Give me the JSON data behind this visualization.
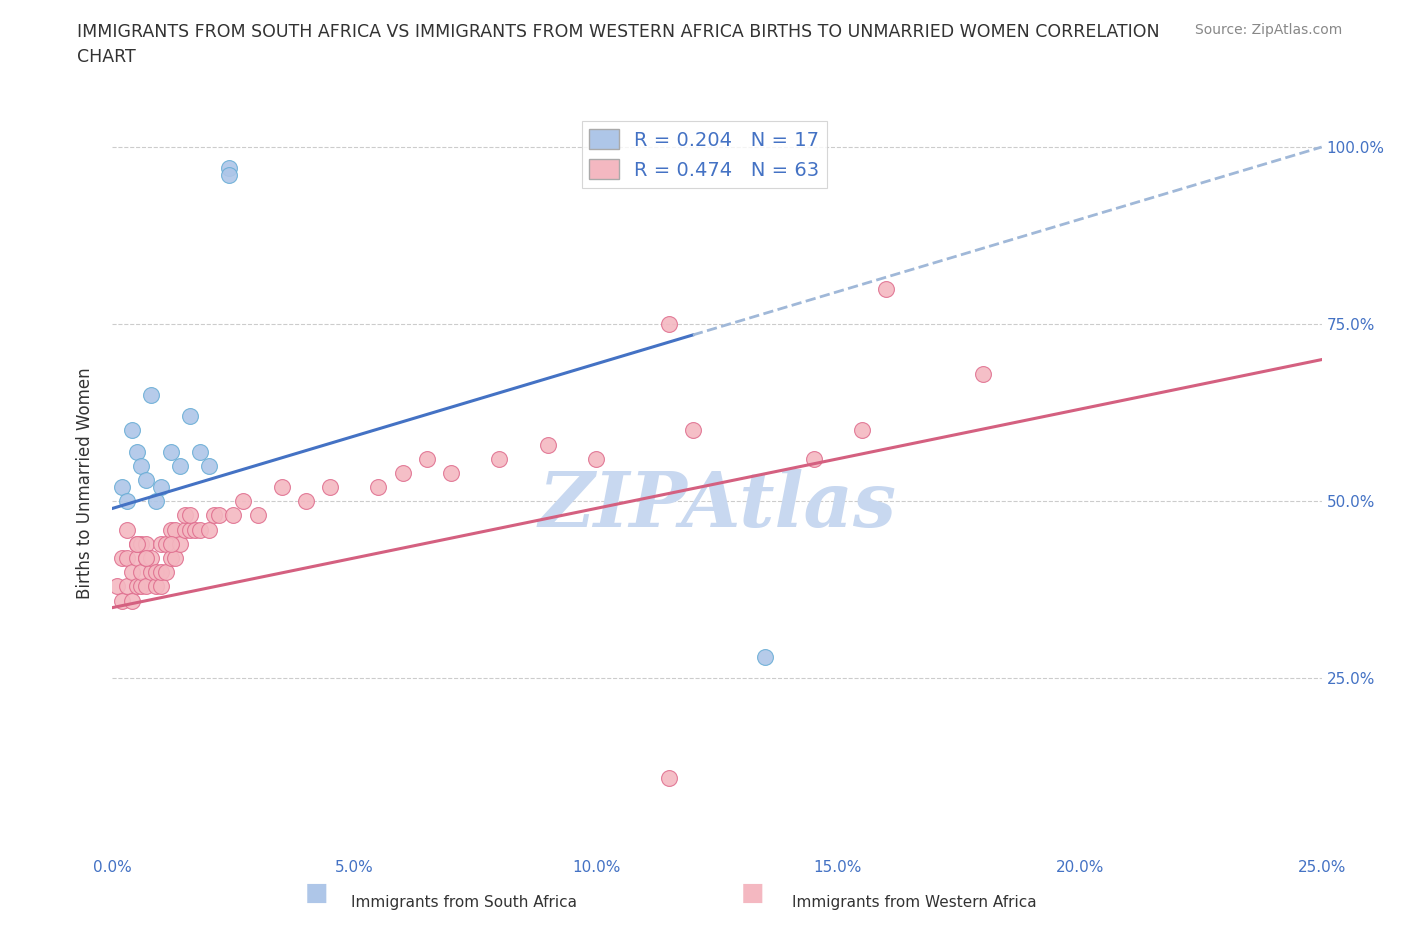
{
  "title": "IMMIGRANTS FROM SOUTH AFRICA VS IMMIGRANTS FROM WESTERN AFRICA BIRTHS TO UNMARRIED WOMEN CORRELATION\nCHART",
  "source": "Source: ZipAtlas.com",
  "ylabel": "Births to Unmarried Women",
  "x_label_ticks": [
    "0.0%",
    "5.0%",
    "10.0%",
    "15.0%",
    "20.0%",
    "25.0%"
  ],
  "y_label_ticks_right": [
    "25.0%",
    "50.0%",
    "75.0%",
    "100.0%"
  ],
  "xlim": [
    0.0,
    0.25
  ],
  "ylim": [
    0.0,
    1.05
  ],
  "series1_name": "Immigrants from South Africa",
  "series1_color": "#aec6e8",
  "series1_edge_color": "#6aaed6",
  "series1_R": 0.204,
  "series1_N": 17,
  "series1_line_color": "#4472c4",
  "series1_line_dash_color": "#a0b8d8",
  "series2_name": "Immigrants from Western Africa",
  "series2_color": "#f4b8c1",
  "series2_edge_color": "#e07090",
  "series2_R": 0.474,
  "series2_N": 63,
  "series2_line_color": "#d46080",
  "watermark": "ZIPAtlas",
  "watermark_color": "#c8d8f0",
  "background_color": "#ffffff",
  "grid_color": "#cccccc",
  "legend_R_N_color": "#4472c4",
  "series1_x": [
    0.002,
    0.003,
    0.004,
    0.005,
    0.006,
    0.007,
    0.008,
    0.009,
    0.01,
    0.012,
    0.014,
    0.016,
    0.018,
    0.02,
    0.024,
    0.024,
    0.135
  ],
  "series1_y": [
    0.52,
    0.5,
    0.6,
    0.57,
    0.55,
    0.53,
    0.65,
    0.5,
    0.52,
    0.57,
    0.55,
    0.62,
    0.57,
    0.55,
    0.97,
    0.96,
    0.28
  ],
  "series2_x": [
    0.001,
    0.002,
    0.002,
    0.003,
    0.003,
    0.004,
    0.004,
    0.005,
    0.005,
    0.005,
    0.006,
    0.006,
    0.006,
    0.007,
    0.007,
    0.007,
    0.008,
    0.008,
    0.009,
    0.009,
    0.01,
    0.01,
    0.01,
    0.011,
    0.011,
    0.012,
    0.012,
    0.013,
    0.013,
    0.014,
    0.015,
    0.015,
    0.016,
    0.016,
    0.017,
    0.018,
    0.02,
    0.021,
    0.022,
    0.025,
    0.027,
    0.03,
    0.035,
    0.04,
    0.045,
    0.055,
    0.06,
    0.065,
    0.07,
    0.08,
    0.09,
    0.1,
    0.12,
    0.115,
    0.145,
    0.155,
    0.16,
    0.003,
    0.005,
    0.007,
    0.012,
    0.115,
    0.18
  ],
  "series2_y": [
    0.38,
    0.36,
    0.42,
    0.38,
    0.42,
    0.36,
    0.4,
    0.38,
    0.42,
    0.44,
    0.38,
    0.4,
    0.44,
    0.38,
    0.42,
    0.44,
    0.4,
    0.42,
    0.38,
    0.4,
    0.38,
    0.4,
    0.44,
    0.4,
    0.44,
    0.42,
    0.46,
    0.42,
    0.46,
    0.44,
    0.46,
    0.48,
    0.46,
    0.48,
    0.46,
    0.46,
    0.46,
    0.48,
    0.48,
    0.48,
    0.5,
    0.48,
    0.52,
    0.5,
    0.52,
    0.52,
    0.54,
    0.56,
    0.54,
    0.56,
    0.58,
    0.56,
    0.6,
    0.75,
    0.56,
    0.6,
    0.8,
    0.46,
    0.44,
    0.42,
    0.44,
    0.11,
    0.68
  ],
  "series1_line_x0": 0.0,
  "series1_line_x1": 0.25,
  "series1_line_y0": 0.49,
  "series1_line_y1": 1.0,
  "series1_line_solid_x1": 0.12,
  "series2_line_x0": 0.0,
  "series2_line_x1": 0.25,
  "series2_line_y0": 0.35,
  "series2_line_y1": 0.7
}
